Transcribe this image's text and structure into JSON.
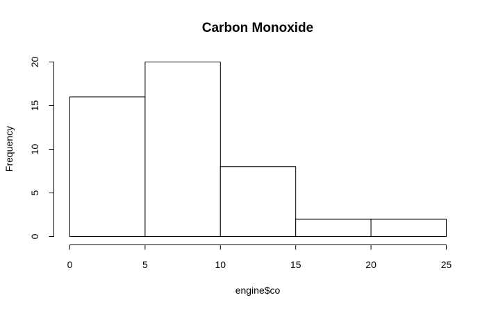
{
  "chart_data": {
    "type": "bar",
    "title": "Carbon Monoxide",
    "xlabel": "engine$co",
    "ylabel": "Frequency",
    "bins": [
      {
        "start": 0,
        "end": 5,
        "count": 16
      },
      {
        "start": 5,
        "end": 10,
        "count": 20
      },
      {
        "start": 10,
        "end": 15,
        "count": 8
      },
      {
        "start": 15,
        "end": 20,
        "count": 2
      },
      {
        "start": 20,
        "end": 25,
        "count": 2
      }
    ],
    "xlim": [
      0,
      25
    ],
    "ylim": [
      0,
      20
    ],
    "x_ticks": [
      "0",
      "5",
      "10",
      "15",
      "20",
      "25"
    ],
    "y_ticks": [
      "0",
      "5",
      "10",
      "15",
      "20"
    ],
    "grid": false,
    "colors": {
      "bar_fill": "#ffffff",
      "bar_stroke": "#000000"
    }
  }
}
